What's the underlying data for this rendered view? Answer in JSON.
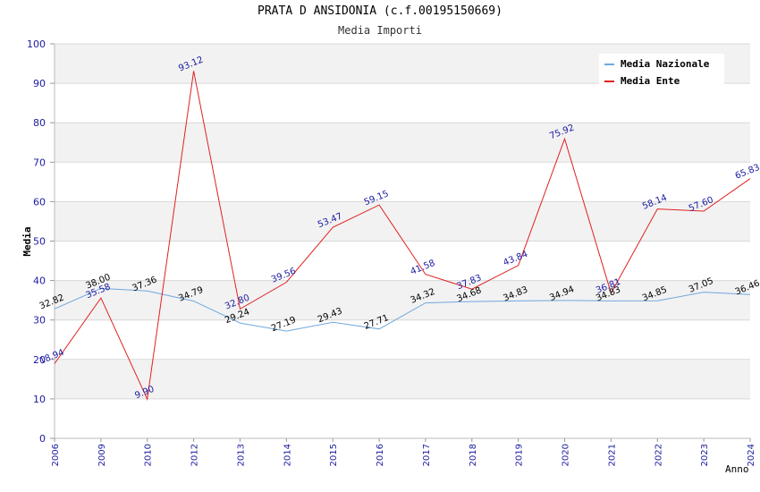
{
  "chart_data": {
    "type": "line",
    "title": "PRATA D ANSIDONIA (c.f.00195150669)",
    "subtitle": "Media Importi",
    "xlabel": "Anno",
    "ylabel": "Media",
    "ylim": [
      0,
      100
    ],
    "yticks": [
      "0",
      "10",
      "20",
      "30",
      "40",
      "50",
      "60",
      "70",
      "80",
      "90",
      "100"
    ],
    "categories": [
      "2006",
      "2009",
      "2010",
      "2012",
      "2013",
      "2014",
      "2015",
      "2016",
      "2017",
      "2018",
      "2019",
      "2020",
      "2021",
      "2022",
      "2023",
      "2024"
    ],
    "series": [
      {
        "name": "Media Nazionale",
        "color": "#6fa8dc",
        "values": [
          32.82,
          38.0,
          37.36,
          34.79,
          29.24,
          27.19,
          29.43,
          27.71,
          34.32,
          34.68,
          34.83,
          34.94,
          34.83,
          34.85,
          37.05,
          36.46
        ],
        "labels": [
          "32.82",
          "38.00",
          "37.36",
          "34.79",
          "29.24",
          "27.19",
          "29.43",
          "27.71",
          "34.32",
          "34.68",
          "34.83",
          "34.94",
          "34.83",
          "34.85",
          "37.05",
          "36.46"
        ]
      },
      {
        "name": "Media Ente",
        "color": "#e02020",
        "values": [
          18.94,
          35.58,
          9.9,
          93.12,
          32.8,
          39.56,
          53.47,
          59.15,
          41.58,
          37.83,
          43.84,
          75.92,
          36.81,
          58.14,
          57.6,
          65.83
        ],
        "labels": [
          "18.94",
          "35.58",
          "9.90",
          "93.12",
          "32.80",
          "39.56",
          "53.47",
          "59.15",
          "41.58",
          "37.83",
          "43.84",
          "75.92",
          "36.81",
          "58.14",
          "57.60",
          "65.83"
        ]
      }
    ],
    "grid": true,
    "legend_position": "top-right"
  }
}
